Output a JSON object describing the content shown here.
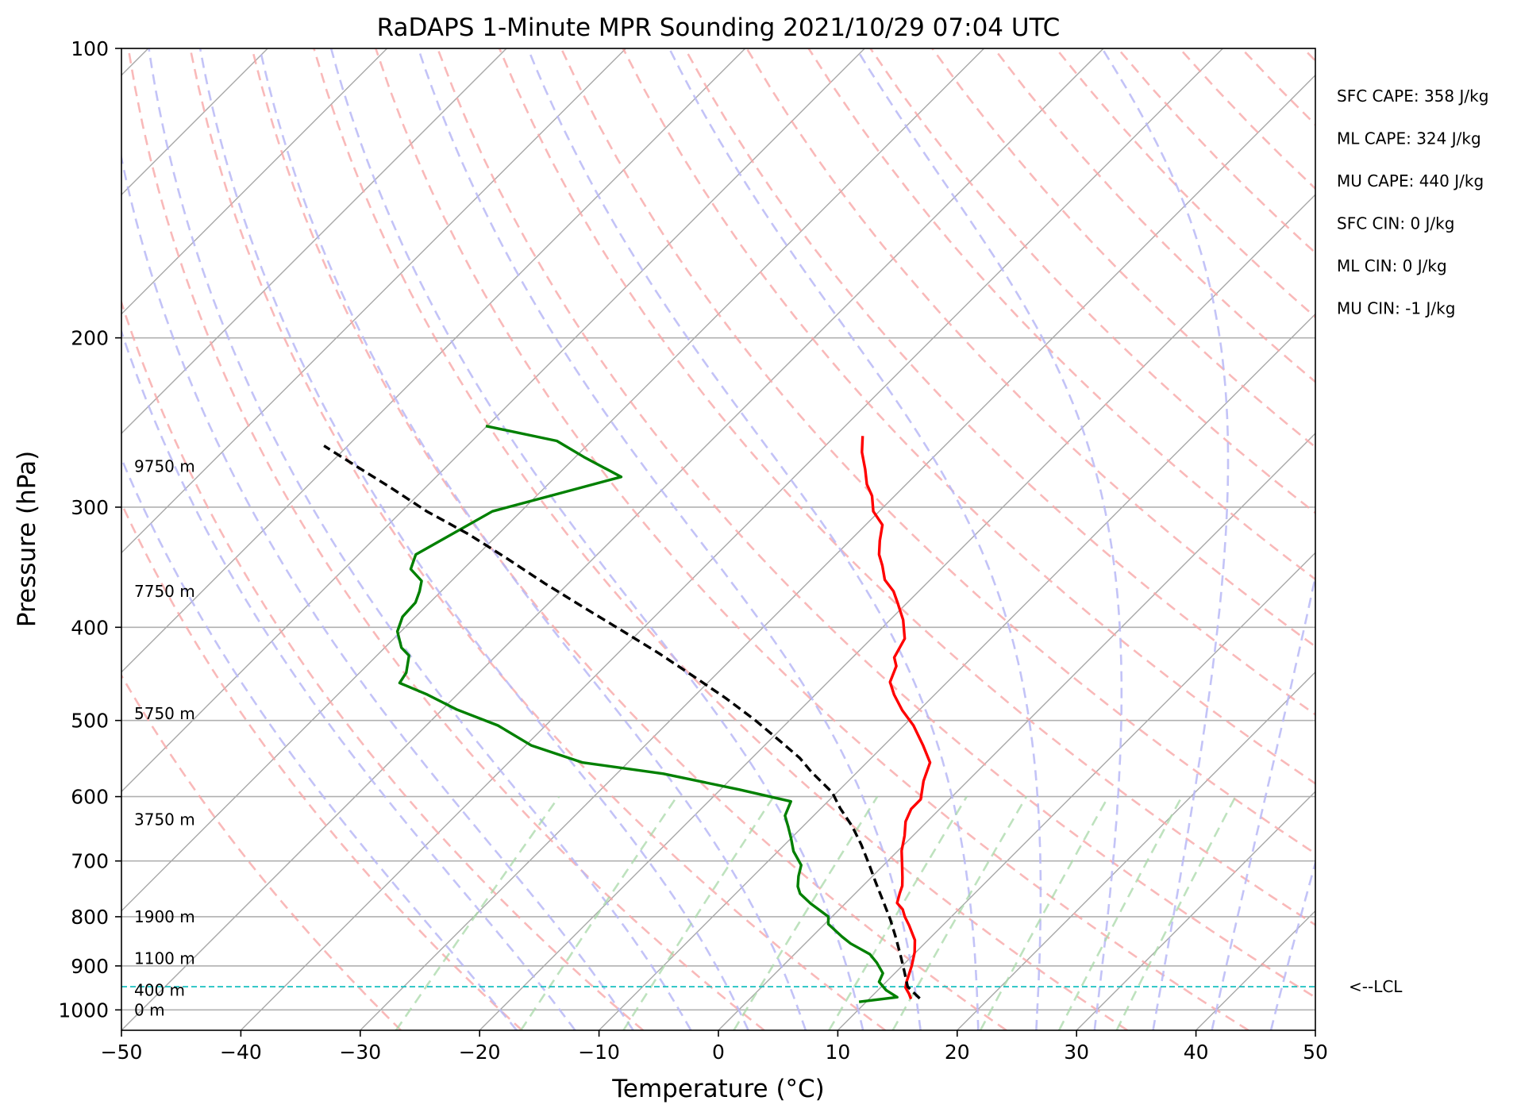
{
  "chart_data": {
    "type": "line",
    "subtype": "skew-t log-p",
    "title": "RaDAPS 1-Minute MPR Sounding 2021/10/29 07:04 UTC",
    "xlabel": "Temperature (°C)",
    "ylabel": "Pressure (hPa)",
    "xlim": [
      -50,
      50
    ],
    "ylim": [
      1050,
      100
    ],
    "y_scale": "log",
    "grid": true,
    "x_ticks": [
      "−50",
      "−40",
      "−30",
      "−20",
      "−10",
      "0",
      "10",
      "20",
      "30",
      "40",
      "50"
    ],
    "y_ticks": [
      "100",
      "200",
      "300",
      "400",
      "500",
      "600",
      "700",
      "800",
      "900",
      "1000"
    ],
    "height_labels": [
      {
        "label": "9750 m",
        "p": 272
      },
      {
        "label": "7750 m",
        "p": 367
      },
      {
        "label": "5750 m",
        "p": 492
      },
      {
        "label": "3750 m",
        "p": 634
      },
      {
        "label": "1900 m",
        "p": 800
      },
      {
        "label": "1100 m",
        "p": 884
      },
      {
        "label": "400 m",
        "p": 954
      },
      {
        "label": "0 m",
        "p": 1000
      }
    ],
    "lcl": {
      "label": "<--LCL",
      "p": 946
    },
    "stats": [
      "SFC CAPE: 358 J/kg",
      "ML CAPE: 324 J/kg",
      "MU CAPE: 440 J/kg",
      "SFC CIN: 0 J/kg",
      "ML CIN: 0 J/kg",
      "MU CIN: -1 J/kg"
    ],
    "series": [
      {
        "role": "temperature",
        "color": "#ff0000",
        "points": [
          [
            13.5,
            974
          ],
          [
            12.9,
            962
          ],
          [
            12.1,
            948
          ],
          [
            11.7,
            935
          ],
          [
            10.8,
            900
          ],
          [
            9.9,
            871
          ],
          [
            8.9,
            846
          ],
          [
            8.2,
            834
          ],
          [
            7.2,
            817
          ],
          [
            6.1,
            800
          ],
          [
            5.3,
            786
          ],
          [
            4.3,
            774
          ],
          [
            3.7,
            756
          ],
          [
            3.3,
            743
          ],
          [
            2.6,
            728
          ],
          [
            1.5,
            706
          ],
          [
            0.3,
            683
          ],
          [
            -0.7,
            659
          ],
          [
            -1.8,
            637
          ],
          [
            -2.4,
            618
          ],
          [
            -2.4,
            604
          ],
          [
            -3.7,
            578
          ],
          [
            -4.7,
            553
          ],
          [
            -6.7,
            531
          ],
          [
            -9.2,
            506
          ],
          [
            -11.4,
            488
          ],
          [
            -13.4,
            470
          ],
          [
            -14.8,
            456
          ],
          [
            -15.6,
            439
          ],
          [
            -16.5,
            430
          ],
          [
            -17.2,
            411
          ],
          [
            -18.9,
            393
          ],
          [
            -20.7,
            378
          ],
          [
            -22.1,
            367
          ],
          [
            -23.8,
            357
          ],
          [
            -25.2,
            345
          ],
          [
            -26.4,
            336
          ],
          [
            -27.5,
            325
          ],
          [
            -28.6,
            313
          ],
          [
            -30.5,
            303
          ],
          [
            -31.9,
            292
          ],
          [
            -33.3,
            284
          ],
          [
            -34.7,
            274
          ],
          [
            -36.4,
            263
          ],
          [
            -37.7,
            253
          ]
        ]
      },
      {
        "role": "dewpoint",
        "color": "#008000",
        "points": [
          [
            9.4,
            981
          ],
          [
            12.2,
            970
          ],
          [
            10.7,
            954
          ],
          [
            9.4,
            935
          ],
          [
            9.0,
            916
          ],
          [
            7.6,
            893
          ],
          [
            6.3,
            875
          ],
          [
            3.8,
            853
          ],
          [
            2.5,
            839
          ],
          [
            0.3,
            814
          ],
          [
            -0.3,
            800
          ],
          [
            -2.9,
            775
          ],
          [
            -4.6,
            757
          ],
          [
            -5.4,
            744
          ],
          [
            -6.2,
            726
          ],
          [
            -6.9,
            707
          ],
          [
            -8.7,
            684
          ],
          [
            -10.0,
            663
          ],
          [
            -11.2,
            645
          ],
          [
            -12.4,
            628
          ],
          [
            -13.1,
            607
          ],
          [
            -18.4,
            590
          ],
          [
            -26.1,
            568
          ],
          [
            -33.8,
            553
          ],
          [
            -39.5,
            531
          ],
          [
            -44.0,
            506
          ],
          [
            -48.8,
            487
          ],
          [
            -52.5,
            470
          ],
          [
            -55.8,
            457
          ],
          [
            -56.1,
            446
          ],
          [
            -57.3,
            428
          ],
          [
            -58.6,
            420
          ],
          [
            -60.3,
            404
          ],
          [
            -61.1,
            390
          ],
          [
            -61.2,
            377
          ],
          [
            -61.8,
            367
          ],
          [
            -62.5,
            358
          ],
          [
            -64.4,
            348
          ],
          [
            -65.2,
            336
          ],
          [
            -62.4,
            303
          ],
          [
            -58.2,
            290
          ],
          [
            -54.5,
            279
          ],
          [
            -59.3,
            266
          ],
          [
            -62.9,
            256
          ],
          [
            -70.1,
            247
          ]
        ]
      },
      {
        "role": "parcel",
        "color": "#000000",
        "style": "dashed",
        "points": [
          [
            14.2,
            973
          ],
          [
            12.2,
            946
          ],
          [
            10.6,
            911
          ],
          [
            9.1,
            880
          ],
          [
            7.1,
            841
          ],
          [
            5.1,
            805
          ],
          [
            3.0,
            771
          ],
          [
            0.8,
            737
          ],
          [
            -1.4,
            704
          ],
          [
            -3.6,
            673
          ],
          [
            -5.9,
            644
          ],
          [
            -8.4,
            617
          ],
          [
            -10.4,
            594
          ],
          [
            -13.8,
            566
          ],
          [
            -16.0,
            547
          ],
          [
            -19.1,
            525
          ],
          [
            -23.0,
            499
          ],
          [
            -27.2,
            474
          ],
          [
            -31.7,
            450
          ],
          [
            -36.5,
            426
          ],
          [
            -41.6,
            403
          ],
          [
            -46.8,
            381
          ],
          [
            -52.0,
            360
          ],
          [
            -57.3,
            339
          ],
          [
            -62.5,
            320
          ],
          [
            -67.9,
            303
          ],
          [
            -73.0,
            286
          ],
          [
            -77.9,
            271
          ],
          [
            -82.0,
            259
          ]
        ]
      }
    ]
  }
}
